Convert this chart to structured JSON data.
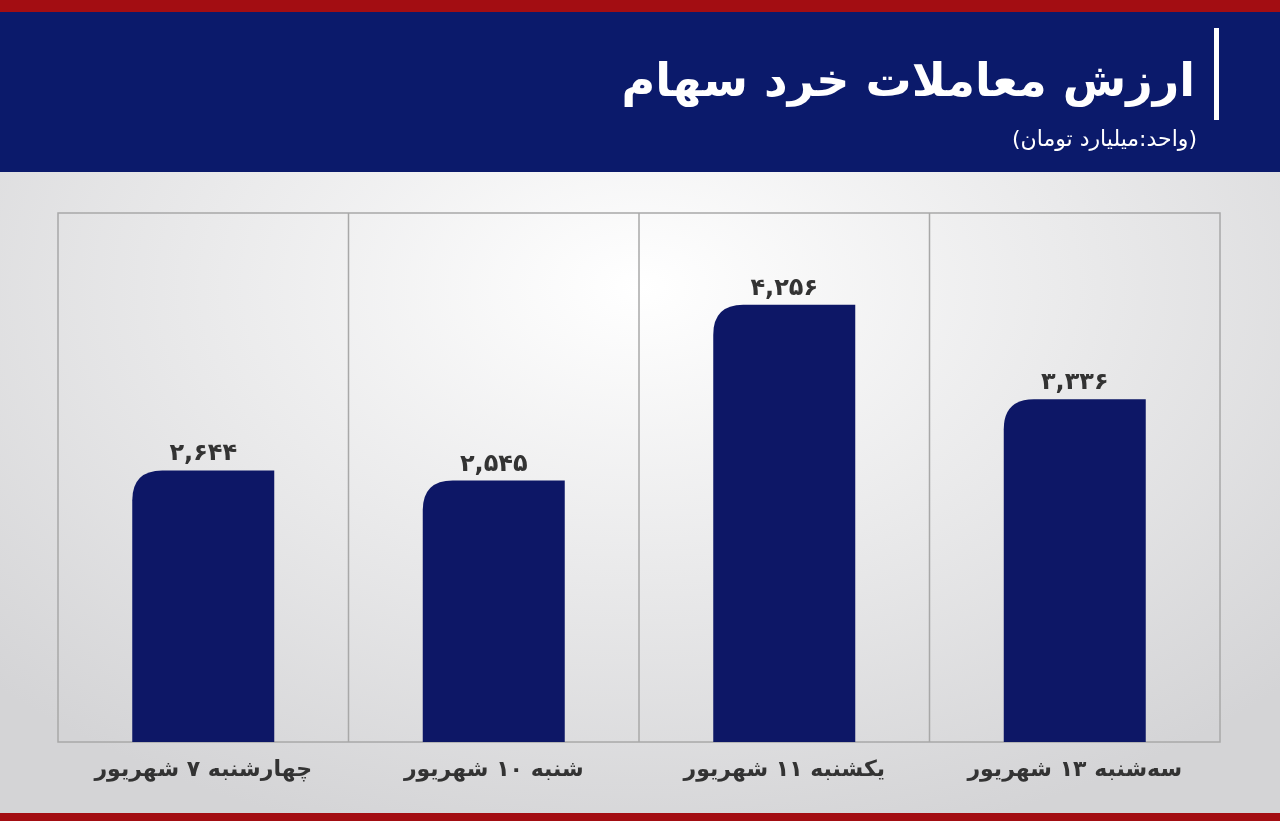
{
  "chart_data": {
    "type": "bar",
    "title": "ارزش معاملات خرد سهام",
    "subtitle": "(واحد:میلیارد تومان)",
    "categories": [
      "چهارشنبه ۷ شهریور",
      "شنبه ۱۰ شهریور",
      "یکشنبه ۱۱ شهریور",
      "سه‌شنبه ۱۳ شهریور"
    ],
    "values": [
      2644,
      2545,
      4256,
      3336
    ],
    "value_labels": [
      "۲,۶۴۴",
      "۲,۵۴۵",
      "۴,۲۵۶",
      "۳,۳۳۶"
    ],
    "color": "#0d1766",
    "grid": "x"
  }
}
